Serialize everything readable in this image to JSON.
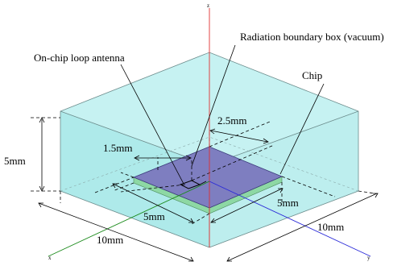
{
  "colors": {
    "box_face_top": "#c6f2f2",
    "box_face_left": "#aeeaea",
    "box_face_right": "#bdeeee",
    "box_edge": "#6c8c8c",
    "chip_top": "#7e7ec0",
    "chip_side": "#8dd8a4",
    "z_axis": "#e03030",
    "x_axis": "#1a8a1a",
    "y_axis": "#2a2ad8",
    "leader": "#000000"
  },
  "labels": {
    "radiation_box": "Radiation boundary box (vacuum)",
    "antenna": "On-chip loop antenna",
    "chip": "Chip"
  },
  "dimensions": {
    "height": "5mm",
    "loop_size": "1.5mm",
    "offset": "2.5mm",
    "chip_width_left": "5mm",
    "chip_width_right": "5mm",
    "box_width_left": "10mm",
    "box_width_right": "10mm"
  },
  "axes": {
    "z": "z",
    "x": "x",
    "y": "y"
  }
}
